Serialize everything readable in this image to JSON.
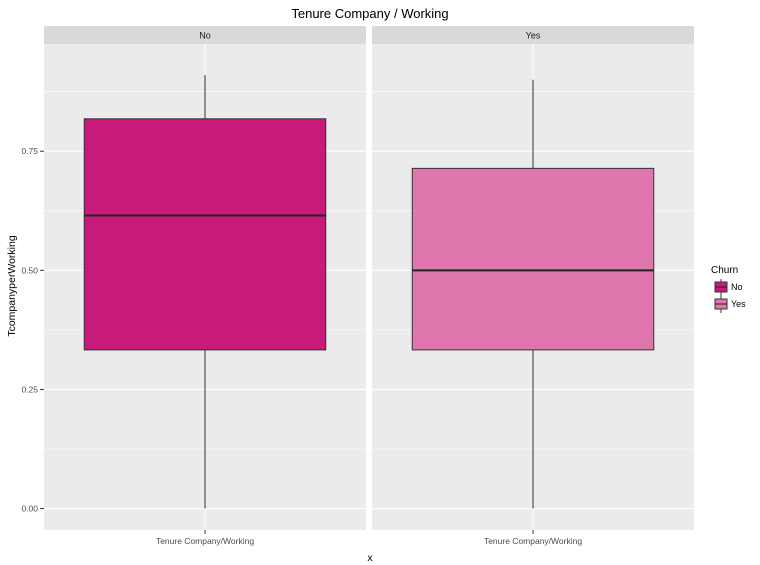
{
  "chart_data": {
    "type": "boxplot",
    "title": "Tenure Company / Working",
    "xlabel": "x",
    "ylabel": "TcompanyperWorking",
    "ylim": [
      -0.045,
      0.975
    ],
    "y_ticks": [
      0.0,
      0.25,
      0.5,
      0.75
    ],
    "y_tick_labels": [
      "0.00",
      "0.25",
      "0.50",
      "0.75"
    ],
    "x_category": "Tenure Company/Working",
    "facet_variable": "Churn",
    "grid": true,
    "legend": {
      "title": "Churn",
      "position": "right",
      "entries": [
        "No",
        "Yes"
      ]
    },
    "panels": [
      {
        "facet": "No",
        "fill": "#C71A7A",
        "whisker_low": 0.0,
        "q1": 0.333,
        "median": 0.615,
        "q3": 0.818,
        "whisker_high": 0.91
      },
      {
        "facet": "Yes",
        "fill": "#DF77AE",
        "whisker_low": 0.0,
        "q1": 0.333,
        "median": 0.5,
        "q3": 0.714,
        "whisker_high": 0.9
      }
    ]
  },
  "colors": {
    "panel_bg": "#EBEBEB",
    "strip_bg": "#D9D9D9",
    "grid": "#FFFFFF",
    "box_outline": "#333333"
  }
}
